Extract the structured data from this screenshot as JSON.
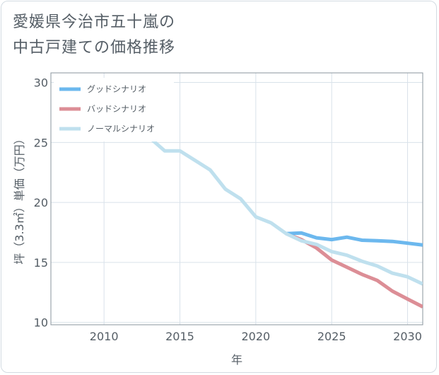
{
  "page": {
    "title_line1": "愛媛県今治市五十嵐の",
    "title_line2": "中古戸建ての価格推移"
  },
  "chart_data": {
    "type": "line",
    "title": "愛媛県今治市五十嵐の 中古戸建ての価格推移",
    "xlabel": "年",
    "ylabel": "坪（3.3㎡）単価（万円）",
    "xlim": [
      2006.5,
      2031
    ],
    "ylim": [
      9.8,
      30.8
    ],
    "x_ticks": [
      2010,
      2015,
      2020,
      2025,
      2030
    ],
    "y_ticks": [
      10,
      15,
      20,
      25,
      30
    ],
    "grid": true,
    "legend_position": "top-left",
    "series": [
      {
        "name": "グッドシナリオ",
        "color": "#6cb8ee",
        "x": [
          2022,
          2023,
          2024,
          2025,
          2026,
          2027,
          2028,
          2029,
          2030,
          2031
        ],
        "y": [
          17.4,
          17.45,
          17.05,
          16.9,
          17.1,
          16.85,
          16.8,
          16.75,
          16.6,
          16.45
        ]
      },
      {
        "name": "バッドシナリオ",
        "color": "#dc8e96",
        "x": [
          2022,
          2023,
          2024,
          2025,
          2026,
          2027,
          2028,
          2029,
          2030,
          2031
        ],
        "y": [
          17.4,
          16.9,
          16.2,
          15.2,
          14.6,
          14.0,
          13.5,
          12.6,
          11.95,
          11.3
        ]
      },
      {
        "name": "ノーマルシナリオ",
        "color": "#bfe0ee",
        "x": [
          2008,
          2009,
          2010,
          2011,
          2012,
          2013,
          2014,
          2015,
          2016,
          2017,
          2018,
          2019,
          2020,
          2021,
          2022,
          2023,
          2024,
          2025,
          2026,
          2027,
          2028,
          2029,
          2030,
          2031
        ],
        "y": [
          28.6,
          29.7,
          29.0,
          27.2,
          26.4,
          25.4,
          24.3,
          24.3,
          23.5,
          22.7,
          21.1,
          20.3,
          18.8,
          18.3,
          17.4,
          16.8,
          16.5,
          15.9,
          15.6,
          15.1,
          14.7,
          14.1,
          13.8,
          13.2
        ]
      }
    ]
  }
}
